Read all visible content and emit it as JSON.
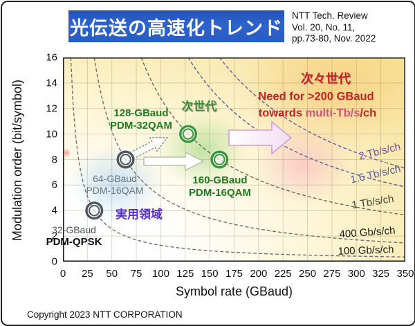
{
  "header": {
    "title": "光伝送の高速化トレンド",
    "reference": [
      "NTT Tech. Review",
      "Vol. 20, No. 11,",
      "pp.73-80, Nov. 2022"
    ]
  },
  "footer": {
    "copyright": "Copyright 2023 NTT CORPORATION"
  },
  "colors": {
    "banner_blue": "#2b5ec9",
    "next_gen_green": "#1e7a1e",
    "alert_red": "#c42323",
    "practical_purple": "#5a2fd0",
    "marker_gray": "#4e565e",
    "marker_green": "#3d9440"
  },
  "chart_data": {
    "type": "scatter",
    "xlabel": "Symbol rate (GBaud)",
    "ylabel": "Modulation order (bit/symbol)",
    "xlim": [
      0,
      350
    ],
    "ylim": [
      0,
      16
    ],
    "x_ticks": [
      0,
      25,
      50,
      75,
      100,
      125,
      150,
      175,
      200,
      225,
      250,
      275,
      300,
      325,
      350
    ],
    "y_ticks": [
      0,
      2,
      4,
      6,
      8,
      10,
      12,
      14,
      16
    ],
    "grid": true,
    "points": [
      {
        "x": 32,
        "y": 4,
        "label_line1": "32-GBaud",
        "label_line2": "PDM-QPSK",
        "color": "#4e565e"
      },
      {
        "x": 64,
        "y": 8,
        "label_line1": "64-GBaud",
        "label_line2": "PDM-16QAM",
        "color": "#4e565e"
      },
      {
        "x": 128,
        "y": 10,
        "label_line1": "128-GBaud",
        "label_line2": "PDM-32QAM",
        "color": "#3d9440"
      },
      {
        "x": 160,
        "y": 8,
        "label_line1": "160-GBaud",
        "label_line2": "PDM-16QAM",
        "color": "#3d9440"
      }
    ],
    "curves": [
      {
        "label": "100 Gb/s/ch",
        "bitrate_product": 128,
        "color": "#6f6f6f",
        "label_color": "#1a1a1a"
      },
      {
        "label": "400 Gb/s/ch",
        "bitrate_product": 512,
        "color": "#6f6f6f",
        "label_color": "#1a1a1a"
      },
      {
        "label": "1 Tb/s/ch",
        "bitrate_product": 1280,
        "color": "#6b6655",
        "label_color": "#3f3f33"
      },
      {
        "label": "1.6 Tb/s/ch",
        "bitrate_product": 2048,
        "color": "#5c5c92",
        "label_color": "#56569e"
      },
      {
        "label": "2 Tb/s/ch",
        "bitrate_product": 2560,
        "color": "#7c55a0",
        "label_color": "#7b49ae"
      }
    ],
    "annotations": {
      "next_gen": "次世代",
      "next_next_gen": "次々世代",
      "need_line1": "Need for >200 GBaud",
      "need_line2a": "towards ",
      "need_line2b": "multi-Tb/s",
      "need_line2c": "/ch",
      "practical_area": "実用領域"
    }
  }
}
